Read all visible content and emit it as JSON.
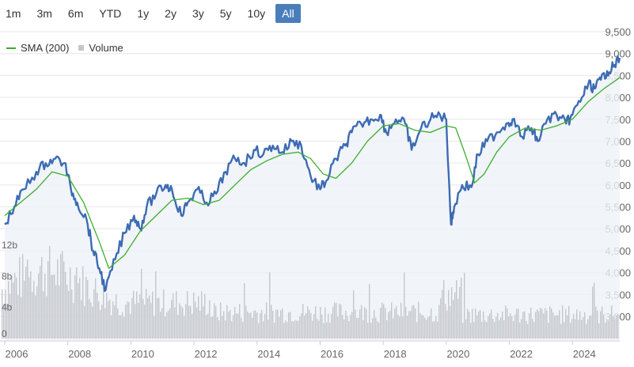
{
  "range_selector": {
    "buttons": [
      "1m",
      "3m",
      "6m",
      "YTD",
      "1y",
      "2y",
      "3y",
      "5y",
      "10y",
      "All"
    ],
    "active": "All"
  },
  "legend": {
    "sma_label": "SMA (200)",
    "volume_label": "Volume"
  },
  "colors": {
    "price_line": "#3d6bb3",
    "sma_line": "#3cae2e",
    "volume_bars": "#c4c6cc",
    "area_fill": "#eef1f8",
    "grid": "#e6e6e6",
    "active_button": "#4a7ebb"
  },
  "chart_data": {
    "type": "line",
    "x_ticks": [
      "2006",
      "2008",
      "2010",
      "2012",
      "2014",
      "2016",
      "2018",
      "2020",
      "2022",
      "2024"
    ],
    "y_ticks": [
      "3,000",
      "3,500",
      "4,000",
      "4,500",
      "5,000",
      "5,500",
      "6,000",
      "6,500",
      "7,000",
      "7,500",
      "8,000",
      "8,500",
      "9,000",
      "9,500"
    ],
    "ylim": [
      3000,
      9500
    ],
    "xlim": [
      2006.0,
      2025.5
    ],
    "volume_ticks": [
      "0",
      "4b",
      "8b",
      "12b"
    ],
    "volume_ylim": [
      0,
      12
    ],
    "series": [
      {
        "name": "Price",
        "x": [
          2006.0,
          2006.3,
          2006.6,
          2007.0,
          2007.3,
          2007.6,
          2007.9,
          2008.1,
          2008.3,
          2008.6,
          2008.8,
          2009.0,
          2009.2,
          2009.5,
          2009.8,
          2010.1,
          2010.3,
          2010.5,
          2010.8,
          2011.1,
          2011.3,
          2011.6,
          2011.8,
          2012.1,
          2012.4,
          2012.7,
          2013.0,
          2013.3,
          2013.6,
          2013.9,
          2014.2,
          2014.5,
          2014.8,
          2015.1,
          2015.4,
          2015.7,
          2016.0,
          2016.2,
          2016.5,
          2016.8,
          2017.0,
          2017.3,
          2017.6,
          2017.9,
          2018.1,
          2018.4,
          2018.7,
          2018.9,
          2019.2,
          2019.5,
          2019.8,
          2020.0,
          2020.15,
          2020.25,
          2020.5,
          2020.8,
          2021.0,
          2021.3,
          2021.6,
          2021.9,
          2022.1,
          2022.4,
          2022.7,
          2022.9,
          2023.2,
          2023.5,
          2023.8,
          2024.0,
          2024.3,
          2024.5,
          2024.7,
          2024.9,
          2025.1,
          2025.3,
          2025.5
        ],
        "values": [
          5100,
          5500,
          5900,
          6300,
          6500,
          6600,
          6500,
          5900,
          5600,
          5200,
          4500,
          4100,
          3600,
          4300,
          4900,
          5300,
          5000,
          5500,
          5800,
          6000,
          5900,
          5300,
          5600,
          5900,
          5600,
          5800,
          6300,
          6600,
          6500,
          6800,
          6700,
          6900,
          6750,
          7000,
          6900,
          6200,
          5900,
          6100,
          6600,
          6900,
          7200,
          7400,
          7500,
          7600,
          7200,
          7500,
          7400,
          6800,
          7300,
          7500,
          7600,
          7500,
          5100,
          5500,
          6000,
          5950,
          6700,
          7000,
          7200,
          7400,
          7500,
          7100,
          7300,
          7000,
          7500,
          7600,
          7400,
          7600,
          8000,
          8300,
          8200,
          8400,
          8600,
          8700,
          8900
        ]
      },
      {
        "name": "SMA (200)",
        "x": [
          2006.0,
          2006.5,
          2007.0,
          2007.5,
          2008.0,
          2008.5,
          2009.0,
          2009.3,
          2009.8,
          2010.3,
          2010.8,
          2011.3,
          2011.8,
          2012.3,
          2012.8,
          2013.3,
          2013.8,
          2014.3,
          2014.8,
          2015.3,
          2015.7,
          2016.1,
          2016.5,
          2017.0,
          2017.5,
          2018.0,
          2018.5,
          2019.0,
          2019.5,
          2020.0,
          2020.3,
          2020.6,
          2020.9,
          2021.2,
          2021.6,
          2022.0,
          2022.5,
          2023.0,
          2023.5,
          2024.0,
          2024.5,
          2025.0,
          2025.5
        ],
        "values": [
          5300,
          5600,
          5900,
          6300,
          6200,
          5600,
          4700,
          4100,
          4400,
          4950,
          5300,
          5650,
          5700,
          5550,
          5650,
          6000,
          6350,
          6550,
          6700,
          6750,
          6600,
          6250,
          6150,
          6500,
          7000,
          7350,
          7400,
          7250,
          7200,
          7350,
          7300,
          6700,
          6050,
          6250,
          6750,
          7100,
          7300,
          7250,
          7350,
          7500,
          7900,
          8200,
          8450
        ]
      }
    ]
  }
}
